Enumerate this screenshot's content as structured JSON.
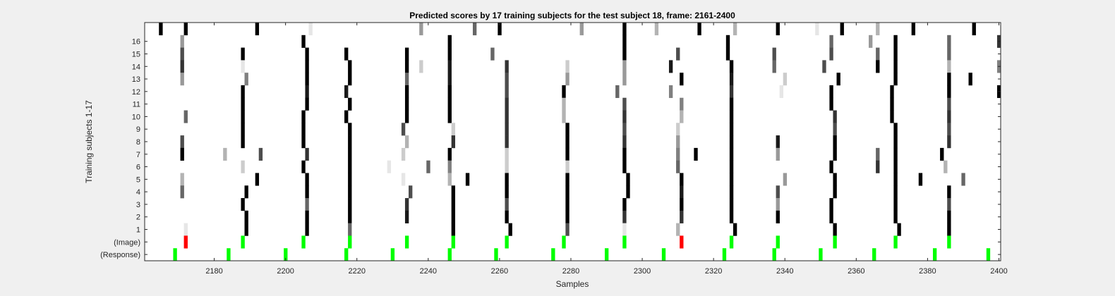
{
  "chart_data": {
    "type": "heatmap",
    "title": "Predicted scores by 17 training subjects for the test subject 18, frame: 2161-2400",
    "xlabel": "Samples",
    "ylabel": "Training subjects 1-17",
    "xlim": [
      2161,
      2400
    ],
    "x_ticks": [
      2180,
      2200,
      2220,
      2240,
      2260,
      2280,
      2300,
      2320,
      2340,
      2360,
      2380,
      2400
    ],
    "y_tick_labels": [
      "16",
      "15",
      "14",
      "13",
      "12",
      "11",
      "10",
      "9",
      "8",
      "7",
      "6",
      "5",
      "4",
      "3",
      "2",
      "1",
      "(Image)",
      "(Response)"
    ],
    "row_order_top_to_bottom": [
      "17",
      "16",
      "15",
      "14",
      "13",
      "12",
      "11",
      "10",
      "9",
      "8",
      "7",
      "6",
      "5",
      "4",
      "3",
      "2",
      "1",
      "(Image)",
      "(Response)"
    ],
    "colors": {
      "background": "#ffffff",
      "image_marker": "#00ff00",
      "mismatch_marker": "#ff0000",
      "response_marker": "#00ff00"
    },
    "response_samples": [
      2169,
      2184,
      2200,
      2217,
      2230,
      2246,
      2259,
      2275,
      2290,
      2306,
      2323,
      2337,
      2350,
      2365,
      2382,
      2397
    ],
    "image_events": [
      {
        "x": 2172,
        "match": false
      },
      {
        "x": 2188,
        "match": true
      },
      {
        "x": 2205,
        "match": true
      },
      {
        "x": 2218,
        "match": true
      },
      {
        "x": 2234,
        "match": true
      },
      {
        "x": 2247,
        "match": true
      },
      {
        "x": 2262,
        "match": true
      },
      {
        "x": 2278,
        "match": true
      },
      {
        "x": 2295,
        "match": true
      },
      {
        "x": 2311,
        "match": false
      },
      {
        "x": 2325,
        "match": true
      },
      {
        "x": 2338,
        "match": true
      },
      {
        "x": 2354,
        "match": true
      },
      {
        "x": 2371,
        "match": true
      },
      {
        "x": 2386,
        "match": true
      }
    ],
    "subject_scores": [
      {
        "subject": 17,
        "cells": [
          [
            2165,
            1
          ],
          [
            2172,
            1
          ],
          [
            2192,
            1
          ],
          [
            2207,
            0.1
          ],
          [
            2238,
            0.4
          ],
          [
            2253,
            0.6
          ],
          [
            2260,
            1
          ],
          [
            2283,
            0.4
          ],
          [
            2295,
            1
          ],
          [
            2304,
            0.3
          ],
          [
            2316,
            1
          ],
          [
            2326,
            0.3
          ],
          [
            2338,
            1
          ],
          [
            2349,
            0.1
          ],
          [
            2356,
            1
          ],
          [
            2366,
            0.3
          ],
          [
            2376,
            1
          ],
          [
            2393,
            1
          ]
        ]
      },
      {
        "subject": 16,
        "cells": [
          [
            2171,
            0.4
          ],
          [
            2205,
            1
          ],
          [
            2246,
            1
          ],
          [
            2295,
            1
          ],
          [
            2324,
            1
          ],
          [
            2353,
            0.6
          ],
          [
            2364,
            0.4
          ],
          [
            2371,
            1
          ],
          [
            2386,
            0.6
          ],
          [
            2400,
            0.8
          ]
        ]
      },
      {
        "subject": 15,
        "cells": [
          [
            2171,
            0.7
          ],
          [
            2188,
            1
          ],
          [
            2206,
            1
          ],
          [
            2217,
            1
          ],
          [
            2234,
            1
          ],
          [
            2246,
            1
          ],
          [
            2258,
            0.6
          ],
          [
            2295,
            1
          ],
          [
            2310,
            0.7
          ],
          [
            2324,
            1
          ],
          [
            2337,
            0.7
          ],
          [
            2353,
            0.7
          ],
          [
            2366,
            0.6
          ],
          [
            2371,
            1
          ],
          [
            2386,
            0.6
          ]
        ]
      },
      {
        "subject": 14,
        "cells": [
          [
            2171,
            0.8
          ],
          [
            2188,
            0.1
          ],
          [
            2206,
            1
          ],
          [
            2218,
            1
          ],
          [
            2234,
            1
          ],
          [
            2238,
            0.2
          ],
          [
            2246,
            0.9
          ],
          [
            2262,
            0.8
          ],
          [
            2279,
            0.2
          ],
          [
            2295,
            0.4
          ],
          [
            2308,
            0.9
          ],
          [
            2325,
            1
          ],
          [
            2337,
            0.6
          ],
          [
            2351,
            0.7
          ],
          [
            2366,
            1
          ],
          [
            2371,
            1
          ],
          [
            2386,
            0.3
          ],
          [
            2400,
            0.5
          ]
        ]
      },
      {
        "subject": 13,
        "cells": [
          [
            2171,
            0.4
          ],
          [
            2189,
            0.5
          ],
          [
            2206,
            1
          ],
          [
            2218,
            1
          ],
          [
            2234,
            0.6
          ],
          [
            2246,
            0.9
          ],
          [
            2262,
            0.7
          ],
          [
            2279,
            0.4
          ],
          [
            2295,
            0.4
          ],
          [
            2311,
            1
          ],
          [
            2325,
            0.9
          ],
          [
            2340,
            0.2
          ],
          [
            2355,
            1
          ],
          [
            2371,
            1
          ],
          [
            2386,
            1
          ],
          [
            2392,
            1
          ]
        ]
      },
      {
        "subject": 12,
        "cells": [
          [
            2188,
            1
          ],
          [
            2206,
            0.9
          ],
          [
            2217,
            0.9
          ],
          [
            2234,
            1
          ],
          [
            2246,
            1
          ],
          [
            2262,
            0.7
          ],
          [
            2278,
            1
          ],
          [
            2293,
            0.6
          ],
          [
            2308,
            0.5
          ],
          [
            2325,
            0.8
          ],
          [
            2339,
            0.1
          ],
          [
            2353,
            1
          ],
          [
            2370,
            1
          ],
          [
            2386,
            1
          ],
          [
            2400,
            1
          ]
        ]
      },
      {
        "subject": 11,
        "cells": [
          [
            2188,
            1
          ],
          [
            2206,
            1
          ],
          [
            2218,
            1
          ],
          [
            2234,
            1
          ],
          [
            2246,
            1
          ],
          [
            2262,
            0.8
          ],
          [
            2278,
            0.3
          ],
          [
            2295,
            0.7
          ],
          [
            2311,
            0.5
          ],
          [
            2325,
            1
          ],
          [
            2353,
            1
          ],
          [
            2370,
            1
          ],
          [
            2386,
            0.7
          ]
        ]
      },
      {
        "subject": 10,
        "cells": [
          [
            2172,
            0.6
          ],
          [
            2188,
            1
          ],
          [
            2205,
            1
          ],
          [
            2217,
            1
          ],
          [
            2234,
            1
          ],
          [
            2246,
            1
          ],
          [
            2262,
            0.8
          ],
          [
            2278,
            0.3
          ],
          [
            2295,
            0.8
          ],
          [
            2311,
            0.3
          ],
          [
            2325,
            1
          ],
          [
            2354,
            0.8
          ],
          [
            2370,
            1
          ],
          [
            2386,
            0.8
          ]
        ]
      },
      {
        "subject": 9,
        "cells": [
          [
            2188,
            1
          ],
          [
            2205,
            1
          ],
          [
            2218,
            1
          ],
          [
            2233,
            0.7
          ],
          [
            2247,
            0.2
          ],
          [
            2262,
            0.8
          ],
          [
            2279,
            1
          ],
          [
            2295,
            0.7
          ],
          [
            2310,
            0.2
          ],
          [
            2325,
            1
          ],
          [
            2354,
            0.7
          ],
          [
            2371,
            1
          ],
          [
            2386,
            0.7
          ]
        ]
      },
      {
        "subject": 8,
        "cells": [
          [
            2171,
            0.7
          ],
          [
            2188,
            1
          ],
          [
            2205,
            1
          ],
          [
            2218,
            1
          ],
          [
            2234,
            0.3
          ],
          [
            2247,
            0.8
          ],
          [
            2262,
            0.8
          ],
          [
            2279,
            1
          ],
          [
            2295,
            0.8
          ],
          [
            2310,
            0.4
          ],
          [
            2325,
            1
          ],
          [
            2338,
            0.9
          ],
          [
            2354,
            1
          ],
          [
            2371,
            1
          ],
          [
            2386,
            0.8
          ]
        ]
      },
      {
        "subject": 7,
        "cells": [
          [
            2171,
            1
          ],
          [
            2183,
            0.3
          ],
          [
            2193,
            0.7
          ],
          [
            2206,
            0.8
          ],
          [
            2218,
            1
          ],
          [
            2233,
            0.2
          ],
          [
            2246,
            1
          ],
          [
            2262,
            0.2
          ],
          [
            2279,
            1
          ],
          [
            2295,
            1
          ],
          [
            2310,
            0.5
          ],
          [
            2315,
            1
          ],
          [
            2325,
            1
          ],
          [
            2338,
            0.4
          ],
          [
            2354,
            1
          ],
          [
            2366,
            0.6
          ],
          [
            2371,
            1
          ],
          [
            2384,
            1
          ]
        ]
      },
      {
        "subject": 6,
        "cells": [
          [
            2188,
            0.2
          ],
          [
            2205,
            1
          ],
          [
            2218,
            1
          ],
          [
            2229,
            0.1
          ],
          [
            2240,
            0.6
          ],
          [
            2246,
            0.5
          ],
          [
            2262,
            0.2
          ],
          [
            2279,
            0.2
          ],
          [
            2295,
            1
          ],
          [
            2310,
            0.6
          ],
          [
            2325,
            1
          ],
          [
            2353,
            1
          ],
          [
            2366,
            0.8
          ],
          [
            2371,
            1
          ],
          [
            2385,
            0.3
          ]
        ]
      },
      {
        "subject": 5,
        "cells": [
          [
            2171,
            0.3
          ],
          [
            2192,
            1
          ],
          [
            2206,
            1
          ],
          [
            2218,
            1
          ],
          [
            2233,
            0.1
          ],
          [
            2246,
            0.3
          ],
          [
            2251,
            1
          ],
          [
            2262,
            1
          ],
          [
            2279,
            1
          ],
          [
            2296,
            1
          ],
          [
            2311,
            1
          ],
          [
            2325,
            1
          ],
          [
            2340,
            0.4
          ],
          [
            2354,
            1
          ],
          [
            2371,
            1
          ],
          [
            2378,
            1
          ],
          [
            2390,
            0.6
          ]
        ]
      },
      {
        "subject": 4,
        "cells": [
          [
            2171,
            0.6
          ],
          [
            2189,
            1
          ],
          [
            2206,
            1
          ],
          [
            2218,
            1
          ],
          [
            2235,
            0.7
          ],
          [
            2247,
            1
          ],
          [
            2262,
            1
          ],
          [
            2279,
            1
          ],
          [
            2296,
            1
          ],
          [
            2311,
            0.9
          ],
          [
            2325,
            1
          ],
          [
            2338,
            0.7
          ],
          [
            2354,
            1
          ],
          [
            2371,
            1
          ],
          [
            2386,
            1
          ]
        ]
      },
      {
        "subject": 3,
        "cells": [
          [
            2188,
            1
          ],
          [
            2206,
            0.6
          ],
          [
            2218,
            1
          ],
          [
            2234,
            0.8
          ],
          [
            2247,
            1
          ],
          [
            2262,
            0.7
          ],
          [
            2279,
            1
          ],
          [
            2295,
            1
          ],
          [
            2311,
            1
          ],
          [
            2325,
            1
          ],
          [
            2338,
            0.4
          ],
          [
            2353,
            1
          ],
          [
            2371,
            1
          ],
          [
            2386,
            0.7
          ]
        ]
      },
      {
        "subject": 2,
        "cells": [
          [
            2189,
            1
          ],
          [
            2206,
            1
          ],
          [
            2218,
            1
          ],
          [
            2234,
            0.9
          ],
          [
            2247,
            1
          ],
          [
            2262,
            1
          ],
          [
            2279,
            1
          ],
          [
            2295,
            0.8
          ],
          [
            2311,
            0.8
          ],
          [
            2325,
            1
          ],
          [
            2338,
            1
          ],
          [
            2353,
            1
          ],
          [
            2371,
            1
          ],
          [
            2386,
            1
          ]
        ]
      },
      {
        "subject": 1,
        "cells": [
          [
            2172,
            0.1
          ],
          [
            2189,
            1
          ],
          [
            2206,
            1
          ],
          [
            2218,
            0.6
          ],
          [
            2247,
            1
          ],
          [
            2263,
            1
          ],
          [
            2279,
            0.7
          ],
          [
            2295,
            0.1
          ],
          [
            2310,
            0.3
          ],
          [
            2326,
            1
          ],
          [
            2354,
            1
          ],
          [
            2372,
            1
          ],
          [
            2386,
            1
          ]
        ]
      }
    ]
  }
}
